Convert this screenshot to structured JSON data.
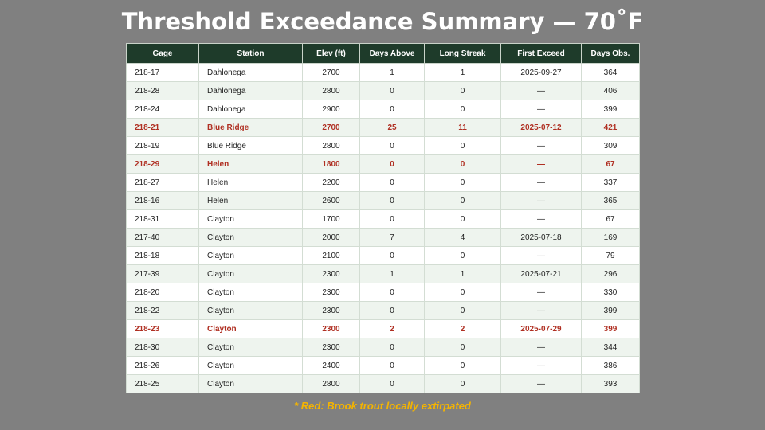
{
  "title": "Threshold Exceedance Summary — 70˚F",
  "colors": {
    "header_bg": "#1e3b2a",
    "highlight_text": "#b03023",
    "footnote": "#f4b400",
    "background": "#808080"
  },
  "table": {
    "columns": [
      "Gage",
      "Station",
      "Elev (ft)",
      "Days Above",
      "Long Streak",
      "First Exceed",
      "Days Obs."
    ],
    "rows": [
      {
        "gage": "218-17",
        "station": "Dahlonega",
        "elev": "2700",
        "days_above": "1",
        "long_streak": "1",
        "first_exceed": "2025-09-27",
        "days_obs": "364",
        "highlight": false
      },
      {
        "gage": "218-28",
        "station": "Dahlonega",
        "elev": "2800",
        "days_above": "0",
        "long_streak": "0",
        "first_exceed": "—",
        "days_obs": "406",
        "highlight": false
      },
      {
        "gage": "218-24",
        "station": "Dahlonega",
        "elev": "2900",
        "days_above": "0",
        "long_streak": "0",
        "first_exceed": "—",
        "days_obs": "399",
        "highlight": false
      },
      {
        "gage": "218-21",
        "station": "Blue Ridge",
        "elev": "2700",
        "days_above": "25",
        "long_streak": "11",
        "first_exceed": "2025-07-12",
        "days_obs": "421",
        "highlight": true
      },
      {
        "gage": "218-19",
        "station": "Blue Ridge",
        "elev": "2800",
        "days_above": "0",
        "long_streak": "0",
        "first_exceed": "—",
        "days_obs": "309",
        "highlight": false
      },
      {
        "gage": "218-29",
        "station": "Helen",
        "elev": "1800",
        "days_above": "0",
        "long_streak": "0",
        "first_exceed": "—",
        "days_obs": "67",
        "highlight": true
      },
      {
        "gage": "218-27",
        "station": "Helen",
        "elev": "2200",
        "days_above": "0",
        "long_streak": "0",
        "first_exceed": "—",
        "days_obs": "337",
        "highlight": false
      },
      {
        "gage": "218-16",
        "station": "Helen",
        "elev": "2600",
        "days_above": "0",
        "long_streak": "0",
        "first_exceed": "—",
        "days_obs": "365",
        "highlight": false
      },
      {
        "gage": "218-31",
        "station": "Clayton",
        "elev": "1700",
        "days_above": "0",
        "long_streak": "0",
        "first_exceed": "—",
        "days_obs": "67",
        "highlight": false
      },
      {
        "gage": "217-40",
        "station": "Clayton",
        "elev": "2000",
        "days_above": "7",
        "long_streak": "4",
        "first_exceed": "2025-07-18",
        "days_obs": "169",
        "highlight": false
      },
      {
        "gage": "218-18",
        "station": "Clayton",
        "elev": "2100",
        "days_above": "0",
        "long_streak": "0",
        "first_exceed": "—",
        "days_obs": "79",
        "highlight": false
      },
      {
        "gage": "217-39",
        "station": "Clayton",
        "elev": "2300",
        "days_above": "1",
        "long_streak": "1",
        "first_exceed": "2025-07-21",
        "days_obs": "296",
        "highlight": false
      },
      {
        "gage": "218-20",
        "station": "Clayton",
        "elev": "2300",
        "days_above": "0",
        "long_streak": "0",
        "first_exceed": "—",
        "days_obs": "330",
        "highlight": false
      },
      {
        "gage": "218-22",
        "station": "Clayton",
        "elev": "2300",
        "days_above": "0",
        "long_streak": "0",
        "first_exceed": "—",
        "days_obs": "399",
        "highlight": false
      },
      {
        "gage": "218-23",
        "station": "Clayton",
        "elev": "2300",
        "days_above": "2",
        "long_streak": "2",
        "first_exceed": "2025-07-29",
        "days_obs": "399",
        "highlight": true
      },
      {
        "gage": "218-30",
        "station": "Clayton",
        "elev": "2300",
        "days_above": "0",
        "long_streak": "0",
        "first_exceed": "—",
        "days_obs": "344",
        "highlight": false
      },
      {
        "gage": "218-26",
        "station": "Clayton",
        "elev": "2400",
        "days_above": "0",
        "long_streak": "0",
        "first_exceed": "—",
        "days_obs": "386",
        "highlight": false
      },
      {
        "gage": "218-25",
        "station": "Clayton",
        "elev": "2800",
        "days_above": "0",
        "long_streak": "0",
        "first_exceed": "—",
        "days_obs": "393",
        "highlight": false
      }
    ]
  },
  "footnote": "* Red: Brook trout locally extirpated"
}
